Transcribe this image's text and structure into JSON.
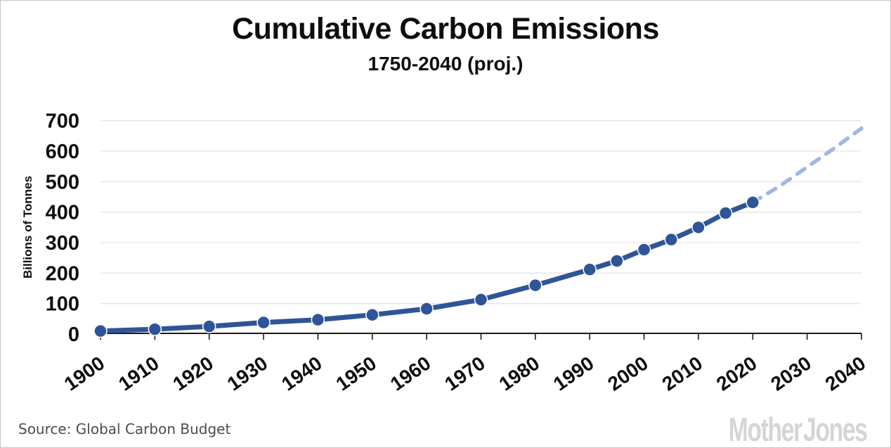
{
  "header": {
    "title": "Cumulative Carbon Emissions",
    "subtitle": "1750-2040 (proj.)"
  },
  "footer": {
    "source": "Source: Global Carbon Budget",
    "logo": "Mother Jones"
  },
  "chart_data": {
    "type": "line",
    "title": "Cumulative Carbon Emissions",
    "subtitle": "1750-2040 (proj.)",
    "xlabel": "",
    "ylabel": "Billions of Tonnes",
    "ylim": [
      0,
      700
    ],
    "ytick_interval": 100,
    "yticks": [
      0,
      100,
      200,
      300,
      400,
      500,
      600,
      700
    ],
    "xlim": [
      1900,
      2040
    ],
    "xticks": [
      1900,
      1910,
      1920,
      1930,
      1940,
      1950,
      1960,
      1970,
      1980,
      1990,
      2000,
      2010,
      2020,
      2030,
      2040
    ],
    "grid": "horizontal",
    "legend": "none",
    "colors": {
      "historical": "#2f5597",
      "projection": "#a0b8e2",
      "gridline": "#e5e5e5",
      "axis": "#1a1a1a",
      "marker_outline": "#ffffff"
    },
    "series": [
      {
        "name": "historical",
        "style": "solid",
        "markers": true,
        "points": [
          [
            1900,
            10
          ],
          [
            1910,
            16
          ],
          [
            1920,
            25
          ],
          [
            1930,
            38
          ],
          [
            1940,
            47
          ],
          [
            1950,
            63
          ],
          [
            1960,
            83
          ],
          [
            1970,
            113
          ],
          [
            1980,
            160
          ],
          [
            1990,
            212
          ],
          [
            1995,
            240
          ],
          [
            2000,
            277
          ],
          [
            2005,
            310
          ],
          [
            2010,
            350
          ],
          [
            2015,
            397
          ],
          [
            2020,
            432
          ]
        ]
      },
      {
        "name": "projection",
        "style": "dashed",
        "markers": false,
        "points": [
          [
            2020,
            432
          ],
          [
            2025,
            486
          ],
          [
            2030,
            548
          ],
          [
            2035,
            610
          ],
          [
            2040,
            675
          ]
        ]
      }
    ]
  }
}
